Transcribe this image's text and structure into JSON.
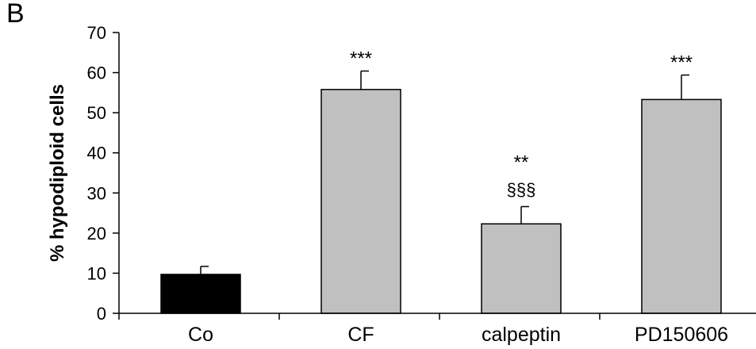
{
  "panel_label": "B",
  "chart_data": {
    "type": "bar",
    "title": "",
    "xlabel": "",
    "ylabel": "% hypodiploid cells",
    "ylim": [
      0,
      70
    ],
    "yticks": [
      0,
      10,
      20,
      30,
      40,
      50,
      60,
      70
    ],
    "grid": false,
    "categories": [
      "Co",
      "CF",
      "calpeptin",
      "PD150606"
    ],
    "values": [
      9.7,
      55.8,
      22.3,
      53.3
    ],
    "errors": [
      2.0,
      4.6,
      4.3,
      6.1
    ],
    "bar_colors": [
      "#000000",
      "#c0c0c0",
      "#c0c0c0",
      "#c0c0c0"
    ],
    "annotations": [
      [],
      [
        "***"
      ],
      [
        "**",
        "§§§"
      ],
      [
        "***"
      ]
    ]
  }
}
